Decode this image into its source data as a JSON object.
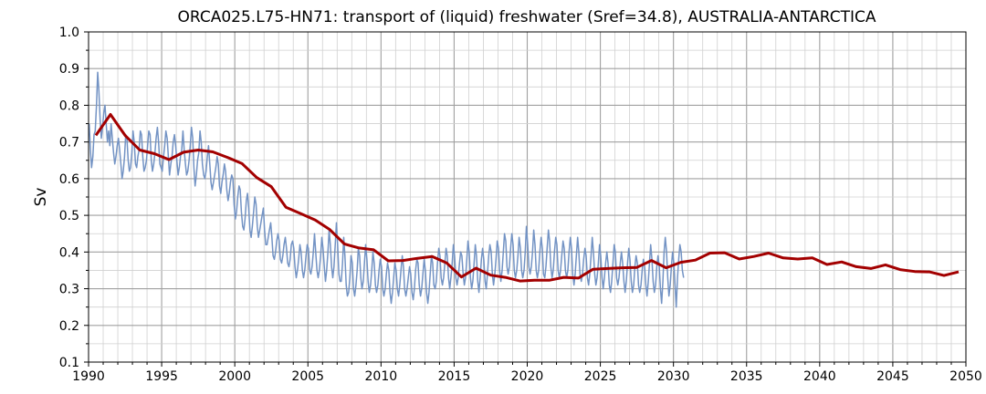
{
  "chart_data": {
    "type": "line",
    "title": "ORCA025.L75-HN71: transport of (liquid) freshwater (Sref=34.8), AUSTRALIA-ANTARCTICA",
    "xlabel": "",
    "ylabel": "Sv",
    "xlim": [
      1990,
      2050
    ],
    "ylim": [
      0.1,
      1.0
    ],
    "grid": true,
    "x_major_ticks": [
      "1990",
      "1995",
      "2000",
      "2005",
      "2010",
      "2015",
      "2020",
      "2025",
      "2030",
      "2035",
      "2040",
      "2045",
      "2050"
    ],
    "y_major_ticks": [
      "0.1",
      "0.2",
      "0.3",
      "0.4",
      "0.5",
      "0.6",
      "0.7",
      "0.8",
      "0.9",
      "1.0"
    ],
    "colors": {
      "monthly": "#7393c4",
      "annual": "#a30000",
      "grid": "#b0b0b0"
    },
    "series": [
      {
        "role": "annual mean",
        "x": [
          1990.5,
          1991.5,
          1992.5,
          1993.5,
          1994.5,
          1995.5,
          1996.5,
          1997.5,
          1998.5,
          1999.5,
          2000.5,
          2001.5,
          2002.5,
          2003.5,
          2004.5,
          2005.5,
          2006.5,
          2007.5,
          2008.5,
          2009.5,
          2010.5,
          2011.5,
          2012.5,
          2013.5,
          2014.5,
          2015.5,
          2016.5,
          2017.5,
          2018.5,
          2019.5,
          2020.5,
          2021.5,
          2022.5,
          2023.5,
          2024.5,
          2025.5,
          2026.5,
          2027.5,
          2028.5,
          2029.5,
          2030.5,
          2031.5,
          2032.5,
          2033.5,
          2034.5,
          2035.5,
          2036.5,
          2037.5,
          2038.5,
          2039.5,
          2040.5,
          2041.5,
          2042.5,
          2043.5,
          2044.5,
          2045.5,
          2046.5,
          2047.5,
          2048.5,
          2049.5
        ],
        "y": [
          0.718,
          0.775,
          0.718,
          0.678,
          0.668,
          0.652,
          0.672,
          0.678,
          0.673,
          0.658,
          0.641,
          0.603,
          0.578,
          0.522,
          0.505,
          0.487,
          0.461,
          0.422,
          0.411,
          0.406,
          0.376,
          0.377,
          0.383,
          0.388,
          0.37,
          0.332,
          0.356,
          0.337,
          0.331,
          0.321,
          0.323,
          0.323,
          0.331,
          0.329,
          0.353,
          0.355,
          0.357,
          0.358,
          0.377,
          0.357,
          0.372,
          0.378,
          0.397,
          0.398,
          0.381,
          0.388,
          0.397,
          0.384,
          0.381,
          0.384,
          0.366,
          0.373,
          0.36,
          0.355,
          0.365,
          0.352,
          0.347,
          0.346,
          0.336,
          0.346
        ]
      },
      {
        "role": "monthly",
        "start": 1990.0417,
        "step": 0.0833,
        "y": [
          0.75,
          0.68,
          0.63,
          0.66,
          0.72,
          0.73,
          0.8,
          0.89,
          0.84,
          0.76,
          0.71,
          0.74,
          0.78,
          0.8,
          0.75,
          0.7,
          0.73,
          0.69,
          0.75,
          0.71,
          0.67,
          0.64,
          0.66,
          0.69,
          0.71,
          0.68,
          0.64,
          0.6,
          0.62,
          0.66,
          0.72,
          0.71,
          0.65,
          0.62,
          0.63,
          0.67,
          0.73,
          0.7,
          0.64,
          0.63,
          0.66,
          0.68,
          0.73,
          0.72,
          0.66,
          0.62,
          0.63,
          0.65,
          0.69,
          0.73,
          0.72,
          0.65,
          0.62,
          0.64,
          0.67,
          0.71,
          0.74,
          0.7,
          0.64,
          0.63,
          0.62,
          0.66,
          0.69,
          0.73,
          0.71,
          0.66,
          0.61,
          0.64,
          0.66,
          0.7,
          0.72,
          0.69,
          0.65,
          0.61,
          0.63,
          0.66,
          0.68,
          0.73,
          0.68,
          0.64,
          0.61,
          0.62,
          0.65,
          0.69,
          0.74,
          0.71,
          0.63,
          0.58,
          0.61,
          0.65,
          0.67,
          0.73,
          0.7,
          0.64,
          0.61,
          0.6,
          0.62,
          0.66,
          0.69,
          0.64,
          0.59,
          0.57,
          0.59,
          0.61,
          0.63,
          0.66,
          0.64,
          0.58,
          0.56,
          0.59,
          0.61,
          0.64,
          0.62,
          0.57,
          0.54,
          0.56,
          0.59,
          0.61,
          0.6,
          0.53,
          0.49,
          0.51,
          0.55,
          0.58,
          0.57,
          0.51,
          0.47,
          0.46,
          0.49,
          0.54,
          0.56,
          0.52,
          0.46,
          0.44,
          0.47,
          0.51,
          0.55,
          0.53,
          0.47,
          0.44,
          0.46,
          0.48,
          0.5,
          0.52,
          0.46,
          0.42,
          0.42,
          0.44,
          0.46,
          0.48,
          0.44,
          0.39,
          0.38,
          0.4,
          0.43,
          0.45,
          0.43,
          0.38,
          0.37,
          0.39,
          0.42,
          0.44,
          0.41,
          0.37,
          0.36,
          0.38,
          0.42,
          0.43,
          0.41,
          0.36,
          0.33,
          0.35,
          0.38,
          0.42,
          0.4,
          0.35,
          0.33,
          0.35,
          0.39,
          0.42,
          0.41,
          0.35,
          0.34,
          0.36,
          0.4,
          0.45,
          0.4,
          0.35,
          0.33,
          0.35,
          0.39,
          0.44,
          0.41,
          0.36,
          0.32,
          0.35,
          0.4,
          0.46,
          0.42,
          0.36,
          0.33,
          0.36,
          0.42,
          0.48,
          0.42,
          0.34,
          0.32,
          0.32,
          0.37,
          0.44,
          0.39,
          0.31,
          0.28,
          0.29,
          0.33,
          0.39,
          0.37,
          0.3,
          0.28,
          0.31,
          0.35,
          0.41,
          0.39,
          0.33,
          0.3,
          0.32,
          0.37,
          0.42,
          0.38,
          0.32,
          0.29,
          0.31,
          0.35,
          0.4,
          0.37,
          0.31,
          0.29,
          0.31,
          0.35,
          0.38,
          0.36,
          0.3,
          0.28,
          0.3,
          0.34,
          0.37,
          0.35,
          0.29,
          0.26,
          0.29,
          0.33,
          0.37,
          0.35,
          0.3,
          0.28,
          0.31,
          0.35,
          0.39,
          0.36,
          0.3,
          0.28,
          0.3,
          0.33,
          0.36,
          0.34,
          0.29,
          0.27,
          0.3,
          0.35,
          0.38,
          0.37,
          0.31,
          0.28,
          0.3,
          0.34,
          0.38,
          0.35,
          0.29,
          0.26,
          0.29,
          0.34,
          0.39,
          0.37,
          0.31,
          0.3,
          0.32,
          0.37,
          0.41,
          0.39,
          0.33,
          0.31,
          0.33,
          0.37,
          0.41,
          0.39,
          0.33,
          0.3,
          0.33,
          0.37,
          0.42,
          0.39,
          0.33,
          0.31,
          0.33,
          0.37,
          0.4,
          0.39,
          0.34,
          0.31,
          0.33,
          0.38,
          0.43,
          0.4,
          0.33,
          0.3,
          0.32,
          0.37,
          0.42,
          0.39,
          0.32,
          0.29,
          0.33,
          0.38,
          0.41,
          0.38,
          0.32,
          0.3,
          0.34,
          0.39,
          0.42,
          0.4,
          0.34,
          0.31,
          0.34,
          0.38,
          0.43,
          0.41,
          0.35,
          0.32,
          0.35,
          0.4,
          0.45,
          0.43,
          0.36,
          0.34,
          0.36,
          0.41,
          0.45,
          0.42,
          0.35,
          0.33,
          0.35,
          0.39,
          0.44,
          0.41,
          0.35,
          0.33,
          0.35,
          0.4,
          0.47,
          0.42,
          0.36,
          0.34,
          0.36,
          0.4,
          0.46,
          0.42,
          0.35,
          0.33,
          0.35,
          0.4,
          0.44,
          0.41,
          0.34,
          0.33,
          0.36,
          0.41,
          0.46,
          0.43,
          0.36,
          0.33,
          0.35,
          0.4,
          0.44,
          0.42,
          0.35,
          0.33,
          0.35,
          0.39,
          0.43,
          0.41,
          0.35,
          0.33,
          0.35,
          0.4,
          0.44,
          0.41,
          0.34,
          0.31,
          0.34,
          0.39,
          0.44,
          0.4,
          0.34,
          0.32,
          0.34,
          0.38,
          0.41,
          0.39,
          0.33,
          0.31,
          0.34,
          0.39,
          0.44,
          0.4,
          0.34,
          0.31,
          0.33,
          0.37,
          0.42,
          0.39,
          0.33,
          0.3,
          0.33,
          0.37,
          0.4,
          0.37,
          0.31,
          0.29,
          0.32,
          0.37,
          0.42,
          0.4,
          0.33,
          0.31,
          0.33,
          0.37,
          0.4,
          0.37,
          0.32,
          0.29,
          0.32,
          0.37,
          0.41,
          0.38,
          0.32,
          0.29,
          0.31,
          0.36,
          0.39,
          0.37,
          0.31,
          0.29,
          0.31,
          0.35,
          0.38,
          0.36,
          0.31,
          0.28,
          0.32,
          0.37,
          0.42,
          0.38,
          0.32,
          0.29,
          0.31,
          0.36,
          0.39,
          0.36,
          0.3,
          0.26,
          0.32,
          0.4,
          0.44,
          0.4,
          0.33,
          0.28,
          0.31,
          0.36,
          0.4,
          0.37,
          0.31,
          0.25,
          0.33,
          0.38,
          0.42,
          0.4,
          0.35,
          0.33
        ]
      }
    ]
  }
}
